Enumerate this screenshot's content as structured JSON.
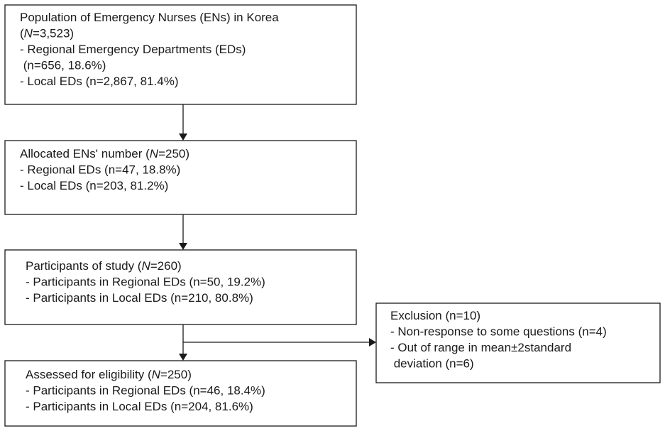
{
  "nodes": [
    {
      "lines": [
        [
          "Population of Emergency Nurses (ENs) in Korea"
        ],
        [
          "(",
          "N",
          "=3,523)"
        ],
        [
          "- Regional Emergency Departments (EDs)"
        ],
        [
          " (n=656, 18.6%)"
        ],
        [
          "- Local EDs (n=2,867, 81.4%)"
        ]
      ]
    },
    {
      "lines": [
        [
          "Allocated ENs' number (",
          "N",
          "=250)"
        ],
        [
          "- Regional EDs (n=47, 18.8%)"
        ],
        [
          "- Local EDs (n=203, 81.2%)"
        ]
      ]
    },
    {
      "lines": [
        [
          "Participants of study (",
          "N",
          "=260)"
        ],
        [
          "- Participants in Regional EDs (n=50, 19.2%)"
        ],
        [
          "- Participants in Local EDs (n=210, 80.8%)"
        ]
      ]
    },
    {
      "lines": [
        [
          "Exclusion (n=10)"
        ],
        [
          "- Non-response to some questions (n=4)"
        ],
        [
          "- Out of range in mean±2standard"
        ],
        [
          " deviation (n=6)"
        ]
      ]
    },
    {
      "lines": [
        [
          "Assessed for eligibility (",
          "N",
          "=250)"
        ],
        [
          "- Participants in Regional EDs (n=46, 18.4%)"
        ],
        [
          "- Participants in Local EDs (n=204, 81.6%)"
        ]
      ]
    }
  ]
}
